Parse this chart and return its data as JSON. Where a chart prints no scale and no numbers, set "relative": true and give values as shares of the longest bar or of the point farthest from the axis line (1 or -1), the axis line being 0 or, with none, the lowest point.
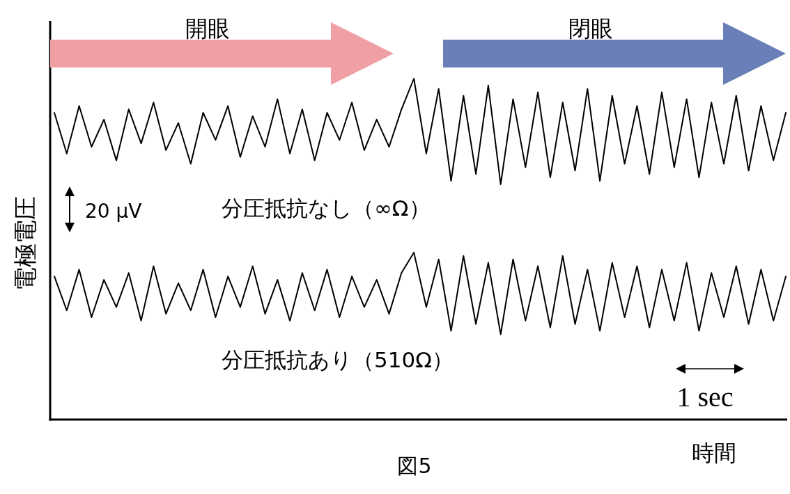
{
  "chart_data": {
    "type": "line",
    "relative": true,
    "xlabel": "時間",
    "ylabel": "電極電圧",
    "categories": [
      null,
      null,
      null,
      null,
      null,
      null,
      null,
      null,
      null,
      null,
      null,
      null,
      null,
      null,
      null,
      null,
      null,
      null,
      null,
      null,
      null,
      null,
      null,
      null,
      null,
      null,
      null,
      null,
      null,
      null,
      null,
      null,
      null,
      null,
      null,
      null,
      null,
      null,
      null,
      null,
      null,
      null,
      null,
      null,
      null,
      null,
      null,
      null,
      null,
      null,
      null,
      null,
      null,
      null,
      null,
      null,
      null,
      null,
      null,
      null
    ],
    "series": [
      {
        "name": "分圧抵抗なし（∞Ω）",
        "color": "#000000",
        "values": [
          0.9,
          0.78,
          0.92,
          0.8,
          0.88,
          0.76,
          0.91,
          0.81,
          0.93,
          0.79,
          0.87,
          0.75,
          0.9,
          0.82,
          0.92,
          0.77,
          0.89,
          0.8,
          0.94,
          0.78,
          0.91,
          0.76,
          0.9,
          0.82,
          0.93,
          0.79,
          0.88,
          0.8,
          0.91,
          1.0,
          0.78,
          0.97,
          0.7,
          0.95,
          0.72,
          0.98,
          0.69,
          0.94,
          0.74,
          0.96,
          0.71,
          0.93,
          0.73,
          0.97,
          0.7,
          0.95,
          0.75,
          0.92,
          0.72,
          0.96,
          0.74,
          0.94,
          0.71,
          0.93,
          0.75,
          0.95,
          0.73,
          0.92,
          0.76,
          0.9
        ]
      },
      {
        "name": "分圧抵抗あり（510Ω）",
        "color": "#000000",
        "values": [
          0.42,
          0.32,
          0.44,
          0.3,
          0.41,
          0.33,
          0.43,
          0.29,
          0.45,
          0.31,
          0.4,
          0.32,
          0.44,
          0.3,
          0.42,
          0.33,
          0.45,
          0.31,
          0.41,
          0.29,
          0.43,
          0.32,
          0.44,
          0.3,
          0.42,
          0.33,
          0.41,
          0.31,
          0.43,
          0.49,
          0.33,
          0.47,
          0.26,
          0.48,
          0.28,
          0.46,
          0.25,
          0.47,
          0.29,
          0.45,
          0.27,
          0.48,
          0.28,
          0.44,
          0.26,
          0.46,
          0.3,
          0.45,
          0.27,
          0.44,
          0.29,
          0.46,
          0.26,
          0.43,
          0.3,
          0.45,
          0.28,
          0.44,
          0.29,
          0.42
        ]
      }
    ],
    "annotations": [
      "開眼",
      "閉眼",
      "20 μV",
      "1 sec",
      "図5"
    ]
  }
}
